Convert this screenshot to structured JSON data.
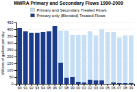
{
  "chart_data": {
    "type": "bar",
    "title": "MWRA Primary and Secondary Flows 1990-2009",
    "ylabel": "Millions of gallons per day",
    "categories": [
      "90",
      "91",
      "92",
      "93",
      "94",
      "95",
      "96",
      "97",
      "98",
      "99",
      "00",
      "01",
      "02",
      "03",
      "04",
      "05",
      "06",
      "07",
      "08",
      "09"
    ],
    "series": [
      {
        "name": "Primary and Secondary Treated Flows",
        "color": "#c6dff5",
        "values": [
          410,
          385,
          375,
          375,
          380,
          385,
          425,
          390,
          390,
          360,
          360,
          360,
          385,
          355,
          400,
          380,
          380,
          340,
          355,
          355
        ]
      },
      {
        "name": "Primary only (Blended) Treated Flows",
        "color": "#1a3a8c",
        "values": [
          410,
          385,
          375,
          375,
          380,
          385,
          425,
          155,
          45,
          50,
          15,
          10,
          30,
          25,
          25,
          0,
          10,
          5,
          5,
          5
        ]
      }
    ],
    "ylim": [
      0,
      450
    ],
    "yticks": [
      0,
      50,
      100,
      150,
      200,
      250,
      300,
      350,
      400,
      450
    ],
    "grid": true,
    "legend": "top"
  }
}
